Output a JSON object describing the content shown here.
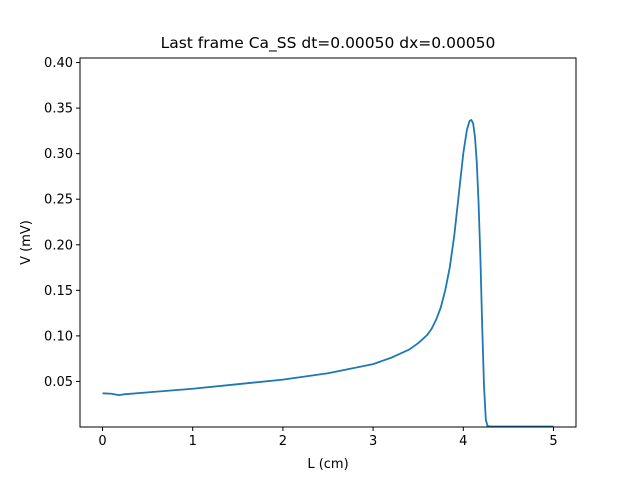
{
  "chart_data": {
    "type": "line",
    "title": "Last frame Ca_SS dt=0.00050 dx=0.00050",
    "xlabel": "L (cm)",
    "ylabel": "V (mV)",
    "xlim": [
      -0.25,
      5.25
    ],
    "ylim": [
      0.0,
      0.405
    ],
    "grid": false,
    "legend": "none",
    "line_color": "#1f77b4",
    "xticks": [
      {
        "value": 0,
        "label": "0"
      },
      {
        "value": 1,
        "label": "1"
      },
      {
        "value": 2,
        "label": "2"
      },
      {
        "value": 3,
        "label": "3"
      },
      {
        "value": 4,
        "label": "4"
      },
      {
        "value": 5,
        "label": "5"
      }
    ],
    "yticks": [
      {
        "value": 0.05,
        "label": "0.05"
      },
      {
        "value": 0.1,
        "label": "0.10"
      },
      {
        "value": 0.15,
        "label": "0.15"
      },
      {
        "value": 0.2,
        "label": "0.20"
      },
      {
        "value": 0.25,
        "label": "0.25"
      },
      {
        "value": 0.3,
        "label": "0.30"
      },
      {
        "value": 0.35,
        "label": "0.35"
      },
      {
        "value": 0.4,
        "label": "0.40"
      }
    ],
    "series": [
      {
        "x": [
          0.0,
          0.1,
          0.18,
          0.25,
          0.5,
          1.0,
          1.5,
          2.0,
          2.5,
          3.0,
          3.2,
          3.4,
          3.5,
          3.6,
          3.65,
          3.7,
          3.75,
          3.8,
          3.85,
          3.9,
          3.95,
          4.0,
          4.04,
          4.07,
          4.09,
          4.11,
          4.13,
          4.15,
          4.17,
          4.19,
          4.21,
          4.23,
          4.25,
          4.27,
          4.3,
          4.5,
          5.0
        ],
        "y": [
          0.037,
          0.0365,
          0.035,
          0.036,
          0.038,
          0.042,
          0.047,
          0.052,
          0.059,
          0.069,
          0.076,
          0.085,
          0.092,
          0.101,
          0.108,
          0.118,
          0.131,
          0.15,
          0.175,
          0.21,
          0.255,
          0.3,
          0.326,
          0.336,
          0.337,
          0.333,
          0.318,
          0.29,
          0.245,
          0.185,
          0.11,
          0.045,
          0.008,
          0.001,
          0.0005,
          0.0005,
          0.0005
        ]
      }
    ]
  }
}
